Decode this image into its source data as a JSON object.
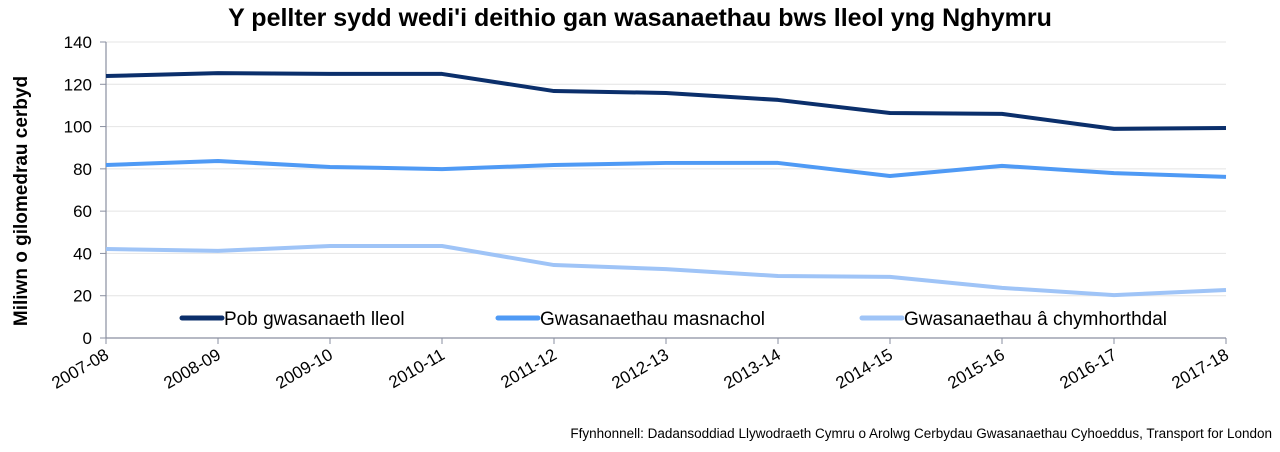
{
  "chart_data": {
    "type": "line",
    "title": "Y pellter sydd wedi'i deithio gan wasanaethau bws lleol yng Nghymru",
    "xlabel": "",
    "ylabel": "Miliwn o gilomedrau cerbyd",
    "categories": [
      "2007-08",
      "2008-09",
      "2009-10",
      "2010-11",
      "2011-12",
      "2012-13",
      "2013-14",
      "2014-15",
      "2015-16",
      "2016-17",
      "2017-18"
    ],
    "ylim": [
      0,
      140
    ],
    "yticks": [
      0,
      20,
      40,
      60,
      80,
      100,
      120,
      140
    ],
    "grid": true,
    "legend_position": "bottom-inside",
    "series": [
      {
        "name": "Pob gwasanaeth lleol",
        "color": "#0b2f6b",
        "values": [
          123.9,
          125.3,
          124.9,
          124.9,
          116.8,
          115.9,
          112.6,
          106.4,
          106.0,
          98.9,
          99.3
        ]
      },
      {
        "name": "Gwasanaethau masnachol",
        "color": "#4f9af5",
        "values": [
          81.8,
          83.7,
          80.9,
          79.9,
          81.8,
          82.8,
          82.8,
          76.6,
          81.4,
          78.0,
          76.2
        ]
      },
      {
        "name": "Gwasanaethau â chymhorthdal",
        "color": "#9fc4f7",
        "values": [
          42.1,
          41.2,
          43.5,
          43.5,
          34.5,
          32.6,
          29.3,
          28.9,
          23.7,
          20.3,
          22.7
        ]
      }
    ]
  },
  "source": "Ffynhonnell: Dadansoddiad Llywodraeth Cymru o Arolwg Cerbydau Gwasanaethau Cyhoeddus, Transport for London"
}
